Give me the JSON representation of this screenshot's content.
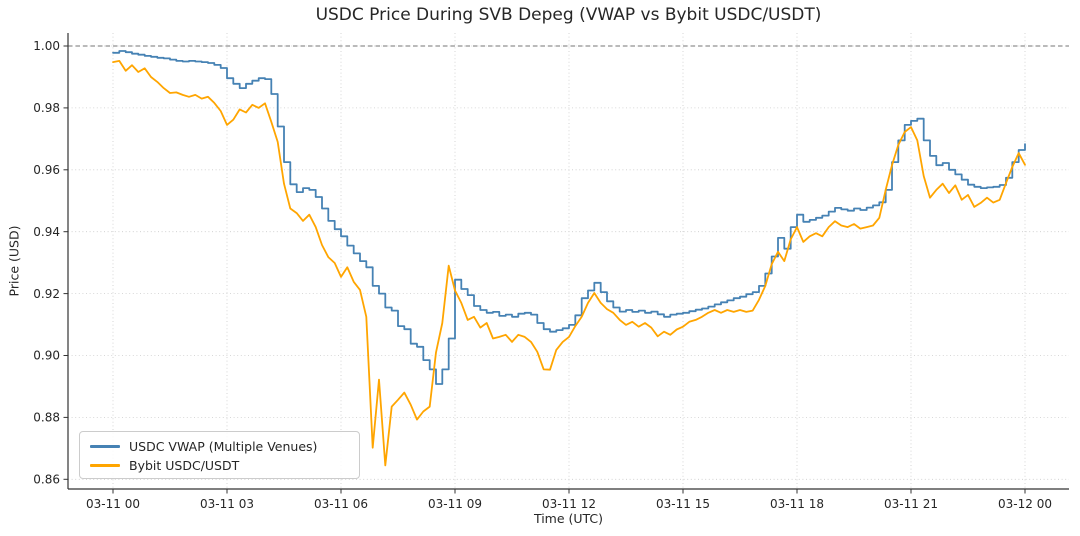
{
  "chart_data": {
    "type": "line",
    "title": "USDC Price During SVB Depeg (VWAP vs Bybit USDC/USDT)",
    "xlabel": "Time (UTC)",
    "ylabel": "Price (USD)",
    "grid": true,
    "legend_position": "lower left",
    "x_tick_labels": [
      "03-11 00",
      "03-11 03",
      "03-11 06",
      "03-11 09",
      "03-11 12",
      "03-11 15",
      "03-11 18",
      "03-11 21",
      "03-12 00"
    ],
    "x_tick_hours": [
      0,
      3,
      6,
      9,
      12,
      15,
      18,
      21,
      24
    ],
    "y_ticks": [
      0.86,
      0.88,
      0.9,
      0.92,
      0.94,
      0.96,
      0.98,
      1.0
    ],
    "ylim": [
      0.857,
      1.004
    ],
    "xlim_hours": [
      -1.18,
      25.16
    ],
    "reference_line": {
      "y": 1.0,
      "style": "dashed",
      "color": "#757575"
    },
    "sample_interval_minutes": 10,
    "x_hours_range": [
      0,
      24
    ],
    "series": [
      {
        "name": "USDC VWAP (Multiple Venues)",
        "color": "#4682B4",
        "line_style": "step",
        "values": [
          0.9978,
          0.9984,
          0.998,
          0.9975,
          0.9972,
          0.9968,
          0.9965,
          0.9962,
          0.996,
          0.9956,
          0.9952,
          0.995,
          0.9952,
          0.995,
          0.9948,
          0.9945,
          0.9939,
          0.9929,
          0.9896,
          0.9878,
          0.9864,
          0.9878,
          0.9888,
          0.9896,
          0.9893,
          0.9845,
          0.974,
          0.9625,
          0.9553,
          0.9528,
          0.9541,
          0.9535,
          0.9512,
          0.9475,
          0.9435,
          0.9408,
          0.9385,
          0.9355,
          0.933,
          0.9305,
          0.9285,
          0.9225,
          0.92,
          0.9155,
          0.9145,
          0.9095,
          0.9085,
          0.9038,
          0.9028,
          0.8985,
          0.8955,
          0.8908,
          0.8955,
          0.9055,
          0.9245,
          0.9215,
          0.9195,
          0.916,
          0.9147,
          0.9138,
          0.9141,
          0.9128,
          0.9132,
          0.9125,
          0.9135,
          0.9138,
          0.9132,
          0.9105,
          0.9085,
          0.9077,
          0.9082,
          0.9088,
          0.9099,
          0.913,
          0.9185,
          0.921,
          0.9235,
          0.9205,
          0.9175,
          0.9155,
          0.9142,
          0.9147,
          0.9141,
          0.9145,
          0.9138,
          0.9142,
          0.9133,
          0.9125,
          0.9132,
          0.9135,
          0.9138,
          0.9143,
          0.9148,
          0.9152,
          0.9158,
          0.9165,
          0.9172,
          0.9178,
          0.9185,
          0.919,
          0.9198,
          0.9205,
          0.9225,
          0.9265,
          0.932,
          0.938,
          0.9345,
          0.9415,
          0.9455,
          0.9432,
          0.9438,
          0.9445,
          0.9452,
          0.9465,
          0.9477,
          0.9472,
          0.9468,
          0.9475,
          0.947,
          0.9478,
          0.9485,
          0.9495,
          0.9535,
          0.9625,
          0.9695,
          0.9745,
          0.9758,
          0.9765,
          0.9695,
          0.9645,
          0.9615,
          0.9622,
          0.96,
          0.9585,
          0.9568,
          0.9552,
          0.9545,
          0.9541,
          0.9543,
          0.9545,
          0.9551,
          0.9574,
          0.9625,
          0.9664,
          0.9683
        ]
      },
      {
        "name": "Bybit USDC/USDT",
        "color": "#FFA500",
        "line_style": "line",
        "values": [
          0.9948,
          0.9952,
          0.992,
          0.9938,
          0.9916,
          0.9928,
          0.99,
          0.9884,
          0.9864,
          0.9848,
          0.985,
          0.9842,
          0.9836,
          0.9842,
          0.983,
          0.9836,
          0.9816,
          0.979,
          0.9745,
          0.9762,
          0.9795,
          0.9785,
          0.981,
          0.98,
          0.9815,
          0.9755,
          0.969,
          0.9555,
          0.9475,
          0.946,
          0.9435,
          0.9455,
          0.9415,
          0.9357,
          0.9318,
          0.9299,
          0.9254,
          0.9285,
          0.9238,
          0.9212,
          0.9125,
          0.8702,
          0.8922,
          0.8645,
          0.8835,
          0.8857,
          0.888,
          0.8841,
          0.8793,
          0.8819,
          0.8835,
          0.901,
          0.9105,
          0.929,
          0.921,
          0.917,
          0.9115,
          0.9125,
          0.909,
          0.9105,
          0.9055,
          0.906,
          0.9067,
          0.9044,
          0.9067,
          0.906,
          0.9044,
          0.9012,
          0.8955,
          0.8954,
          0.9018,
          0.9044,
          0.906,
          0.9095,
          0.9125,
          0.917,
          0.9202,
          0.917,
          0.915,
          0.9138,
          0.9115,
          0.9099,
          0.9109,
          0.9093,
          0.9105,
          0.909,
          0.9062,
          0.9077,
          0.9067,
          0.9084,
          0.9093,
          0.9109,
          0.9115,
          0.9125,
          0.9138,
          0.9147,
          0.9138,
          0.9147,
          0.9141,
          0.9147,
          0.9141,
          0.9145,
          0.918,
          0.9225,
          0.9295,
          0.9335,
          0.9305,
          0.9375,
          0.9415,
          0.9367,
          0.9385,
          0.9395,
          0.9385,
          0.9415,
          0.9434,
          0.942,
          0.9415,
          0.9425,
          0.941,
          0.9415,
          0.942,
          0.9445,
          0.9535,
          0.9615,
          0.968,
          0.9722,
          0.9738,
          0.9695,
          0.958,
          0.951,
          0.9535,
          0.9555,
          0.9525,
          0.955,
          0.9503,
          0.9519,
          0.948,
          0.9493,
          0.951,
          0.9494,
          0.9503,
          0.9557,
          0.9609,
          0.9654,
          0.9616
        ]
      }
    ]
  }
}
